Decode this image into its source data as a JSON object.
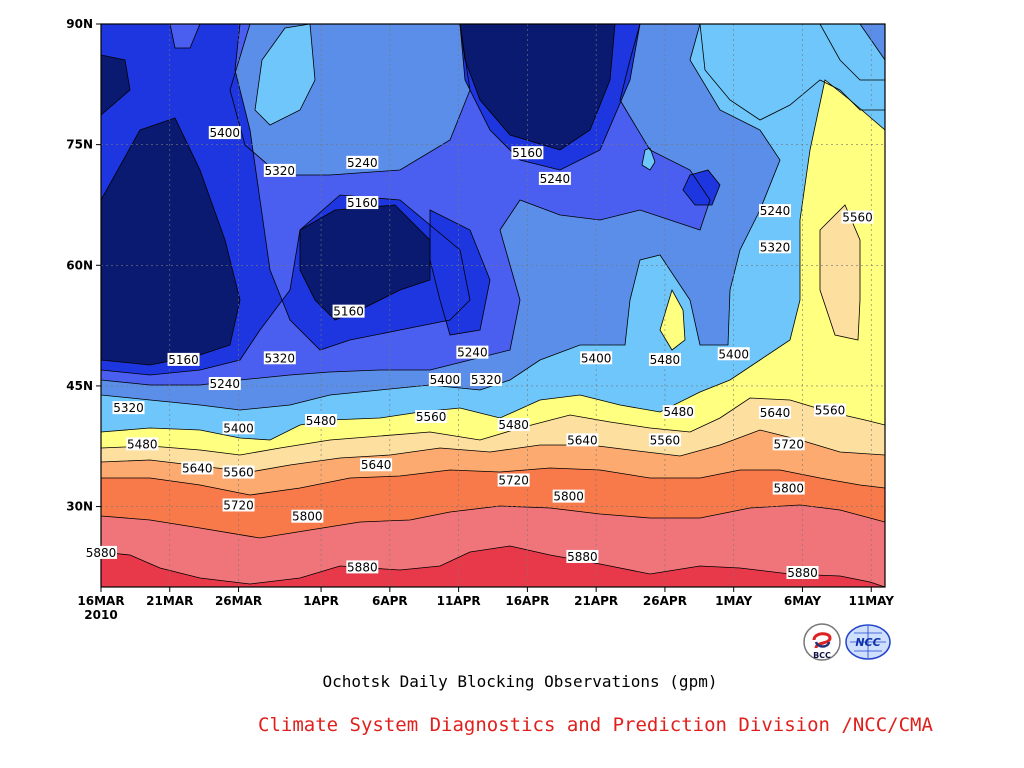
{
  "title": "Ochotsk Daily Blocking Observations (gpm)",
  "credit": "Climate System Diagnostics and Prediction Division /NCC/CMA",
  "logos": [
    {
      "name": "bcc-logo",
      "text": "BCC"
    },
    {
      "name": "ncc-logo",
      "text": "NCC"
    }
  ],
  "chart_data": {
    "type": "heatmap",
    "subtype": "filled-contour",
    "title": "Ochotsk Daily Blocking Observations (gpm)",
    "units": "gpm",
    "x_axis": {
      "type": "date",
      "ticks": [
        "16MAR",
        "21MAR",
        "26MAR",
        "1APR",
        "6APR",
        "11APR",
        "16APR",
        "21APR",
        "26APR",
        "1MAY",
        "6MAY",
        "11MAY"
      ],
      "year_label": "2010",
      "range": [
        "2010-03-16",
        "2010-05-12"
      ]
    },
    "y_axis": {
      "ticks": [
        "30N",
        "45N",
        "60N",
        "75N",
        "90N"
      ],
      "range": [
        20,
        90
      ]
    },
    "grid": true,
    "contour_levels": [
      5160,
      5240,
      5320,
      5400,
      5480,
      5560,
      5640,
      5720,
      5800,
      5880
    ],
    "level_colors": [
      "#0a1a70",
      "#1d36e0",
      "#4a5ef0",
      "#5b8ee8",
      "#6ec6fa",
      "#ffff80",
      "#fde0a0",
      "#fdaa70",
      "#f8794a",
      "#f0757a",
      "#e8394a"
    ],
    "contour_labels": [
      {
        "label": "5400",
        "date": "2010-03-25",
        "lat": 76.5
      },
      {
        "label": "5320",
        "date": "2010-03-29",
        "lat": 71.8
      },
      {
        "label": "5240",
        "date": "2010-04-04",
        "lat": 72.8
      },
      {
        "label": "5160",
        "date": "2010-04-04",
        "lat": 67.8
      },
      {
        "label": "5160",
        "date": "2010-04-03",
        "lat": 54.3
      },
      {
        "label": "5160",
        "date": "2010-04-16",
        "lat": 74.0
      },
      {
        "label": "5240",
        "date": "2010-04-18",
        "lat": 70.8
      },
      {
        "label": "5240",
        "date": "2010-05-04",
        "lat": 66.8
      },
      {
        "label": "5320",
        "date": "2010-05-04",
        "lat": 62.3
      },
      {
        "label": "5400",
        "date": "2010-05-01",
        "lat": 49.0
      },
      {
        "label": "5480",
        "date": "2010-04-26",
        "lat": 48.3
      },
      {
        "label": "5400",
        "date": "2010-04-21",
        "lat": 48.5
      },
      {
        "label": "5560",
        "date": "2010-05-10",
        "lat": 66.0
      },
      {
        "label": "5160",
        "date": "2010-03-22",
        "lat": 48.3
      },
      {
        "label": "5320",
        "date": "2010-03-29",
        "lat": 48.5
      },
      {
        "label": "5240",
        "date": "2010-04-12",
        "lat": 49.2
      },
      {
        "label": "5240",
        "date": "2010-03-25",
        "lat": 45.3
      },
      {
        "label": "5320",
        "date": "2010-03-18",
        "lat": 42.3
      },
      {
        "label": "5400",
        "date": "2010-04-10",
        "lat": 45.8
      },
      {
        "label": "5320",
        "date": "2010-04-13",
        "lat": 45.8
      },
      {
        "label": "5400",
        "date": "2010-03-26",
        "lat": 39.8
      },
      {
        "label": "5480",
        "date": "2010-04-01",
        "lat": 40.7
      },
      {
        "label": "5560",
        "date": "2010-04-09",
        "lat": 41.2
      },
      {
        "label": "5480",
        "date": "2010-04-15",
        "lat": 40.2
      },
      {
        "label": "5480",
        "date": "2010-04-27",
        "lat": 41.8
      },
      {
        "label": "5640",
        "date": "2010-05-04",
        "lat": 41.7
      },
      {
        "label": "5560",
        "date": "2010-05-08",
        "lat": 42.0
      },
      {
        "label": "5480",
        "date": "2010-03-19",
        "lat": 37.8
      },
      {
        "label": "5640",
        "date": "2010-04-20",
        "lat": 38.3
      },
      {
        "label": "5560",
        "date": "2010-04-26",
        "lat": 38.3
      },
      {
        "label": "5720",
        "date": "2010-05-05",
        "lat": 37.8
      },
      {
        "label": "5640",
        "date": "2010-03-23",
        "lat": 34.8
      },
      {
        "label": "5560",
        "date": "2010-03-26",
        "lat": 34.3
      },
      {
        "label": "5640",
        "date": "2010-04-05",
        "lat": 35.2
      },
      {
        "label": "5720",
        "date": "2010-04-15",
        "lat": 33.3
      },
      {
        "label": "5800",
        "date": "2010-05-05",
        "lat": 32.3
      },
      {
        "label": "5800",
        "date": "2010-04-19",
        "lat": 31.3
      },
      {
        "label": "5720",
        "date": "2010-03-26",
        "lat": 30.2
      },
      {
        "label": "5800",
        "date": "2010-03-31",
        "lat": 28.8
      },
      {
        "label": "5880",
        "date": "2010-03-16",
        "lat": 24.3
      },
      {
        "label": "5880",
        "date": "2010-04-04",
        "lat": 22.5
      },
      {
        "label": "5880",
        "date": "2010-04-20",
        "lat": 23.8
      },
      {
        "label": "5880",
        "date": "2010-05-06",
        "lat": 21.8
      }
    ]
  }
}
